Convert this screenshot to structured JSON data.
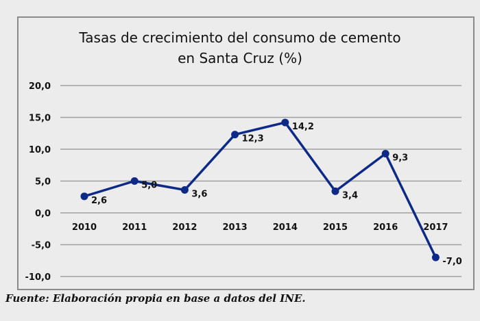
{
  "chart_data": {
    "type": "line",
    "title_line1": "Tasas de crecimiento del consumo de cemento",
    "title_line2": "en Santa Cruz (%)",
    "categories": [
      "2010",
      "2011",
      "2012",
      "2013",
      "2014",
      "2015",
      "2016",
      "2017"
    ],
    "values": [
      2.6,
      5.0,
      3.6,
      12.3,
      14.2,
      3.4,
      9.3,
      -7.0
    ],
    "data_labels": [
      "2,6",
      "5,0",
      "3,6",
      "12,3",
      "14,2",
      "3,4",
      "9,3",
      "-7,0"
    ],
    "ylim": [
      -10,
      20
    ],
    "yticks": [
      20,
      15,
      10,
      5,
      0,
      -5,
      -10
    ],
    "ytick_labels": [
      "20,0",
      "15,0",
      "10,0",
      "5,0",
      "0,0",
      "-5,0",
      "-10,0"
    ],
    "grid": true,
    "line_color": "#0d2a86",
    "xlabel": "",
    "ylabel": ""
  },
  "caption": "Fuente: Elaboración propia en base a datos del INE."
}
